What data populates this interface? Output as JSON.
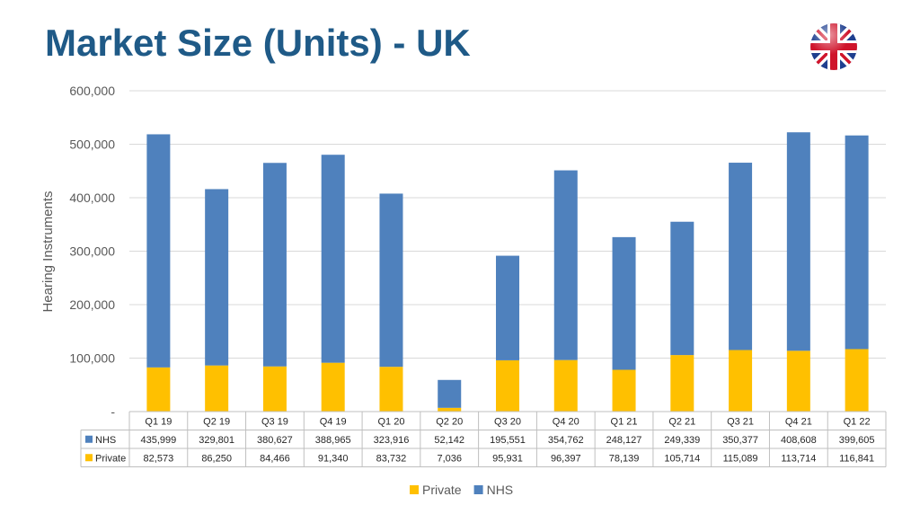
{
  "title": "Market Size (Units) - UK",
  "flag_icon": "uk-flag-icon",
  "chart_data": {
    "type": "bar",
    "stacked": true,
    "title": "",
    "ylabel": "Hearing Instruments",
    "xlabel": "",
    "ylim": [
      0,
      600000
    ],
    "yticks": [
      "600,000",
      "500,000",
      "400,000",
      "300,000",
      "200,000",
      "100,000",
      "-"
    ],
    "categories": [
      "Q1 19",
      "Q2 19",
      "Q3 19",
      "Q4 19",
      "Q1 20",
      "Q2 20",
      "Q3 20",
      "Q4 20",
      "Q1 21",
      "Q2 21",
      "Q3 21",
      "Q4 21",
      "Q1 22"
    ],
    "series": [
      {
        "name": "Private",
        "color": "#ffc000",
        "values": [
          82573,
          86250,
          84466,
          91340,
          83732,
          7036,
          95931,
          96397,
          78139,
          105714,
          115089,
          113714,
          116841
        ],
        "labels": [
          "82,573",
          "86,250",
          "84,466",
          "91,340",
          "83,732",
          "7,036",
          "95,931",
          "96,397",
          "78,139",
          "105,714",
          "115,089",
          "113,714",
          "116,841"
        ]
      },
      {
        "name": "NHS",
        "color": "#4f81bd",
        "values": [
          435999,
          329801,
          380627,
          388965,
          323916,
          52142,
          195551,
          354762,
          248127,
          249339,
          350377,
          408608,
          399605
        ],
        "labels": [
          "435,999",
          "329,801",
          "380,627",
          "388,965",
          "323,916",
          "52,142",
          "195,551",
          "354,762",
          "248,127",
          "249,339",
          "350,377",
          "408,608",
          "399,605"
        ]
      }
    ],
    "table_rows_order": [
      "NHS",
      "Private"
    ],
    "legend_order": [
      "Private",
      "NHS"
    ],
    "legend_position": "bottom",
    "grid": true
  }
}
